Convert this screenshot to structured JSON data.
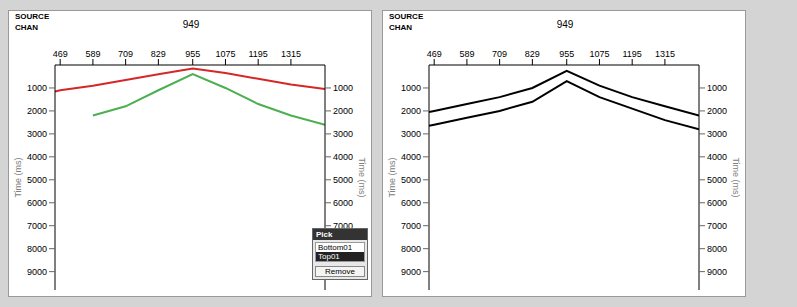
{
  "chart_data": [
    {
      "type": "line",
      "source": {
        "label": "SOURCE",
        "value": 949
      },
      "x_label": "CHAN",
      "y_label": "Time (ms)",
      "x": [
        450,
        469,
        589,
        709,
        829,
        955,
        1075,
        1195,
        1315,
        1440
      ],
      "xlim": [
        450,
        1440
      ],
      "xticks": [
        469,
        589,
        709,
        829,
        955,
        1075,
        1195,
        1315
      ],
      "ylim": [
        0,
        9800
      ],
      "yticks": [
        1000,
        2000,
        3000,
        4000,
        5000,
        6000,
        7000,
        8000,
        9000
      ],
      "grid": false,
      "series": [
        {
          "name": "Top01",
          "color": "#d62728",
          "values": [
            1150,
            1100,
            900,
            650,
            400,
            150,
            350,
            600,
            850,
            1050
          ]
        },
        {
          "name": "Bottom01",
          "color": "#4caf50",
          "values": [
            null,
            null,
            2200,
            1800,
            1100,
            400,
            1000,
            1700,
            2200,
            2600
          ]
        }
      ]
    },
    {
      "type": "line",
      "source": {
        "label": "SOURCE",
        "value": 949
      },
      "x_label": "CHAN",
      "y_label": "Time (ms)",
      "x": [
        450,
        469,
        589,
        709,
        829,
        955,
        1075,
        1195,
        1315,
        1440
      ],
      "xlim": [
        450,
        1440
      ],
      "xticks": [
        469,
        589,
        709,
        829,
        955,
        1075,
        1195,
        1315
      ],
      "ylim": [
        0,
        9800
      ],
      "yticks": [
        1000,
        2000,
        3000,
        4000,
        5000,
        6000,
        7000,
        8000,
        9000
      ],
      "grid": false,
      "series": [
        {
          "color": "#000000",
          "values": [
            2050,
            2000,
            1700,
            1400,
            1000,
            250,
            900,
            1400,
            1800,
            2200
          ]
        },
        {
          "color": "#000000",
          "values": [
            2650,
            2600,
            2300,
            2000,
            1600,
            700,
            1400,
            1900,
            2400,
            2800
          ]
        }
      ]
    }
  ],
  "pick_dialog": {
    "title": "Pick",
    "items": [
      "Bottom01",
      "Top01"
    ],
    "selected": "Top01",
    "button": "Remove"
  }
}
